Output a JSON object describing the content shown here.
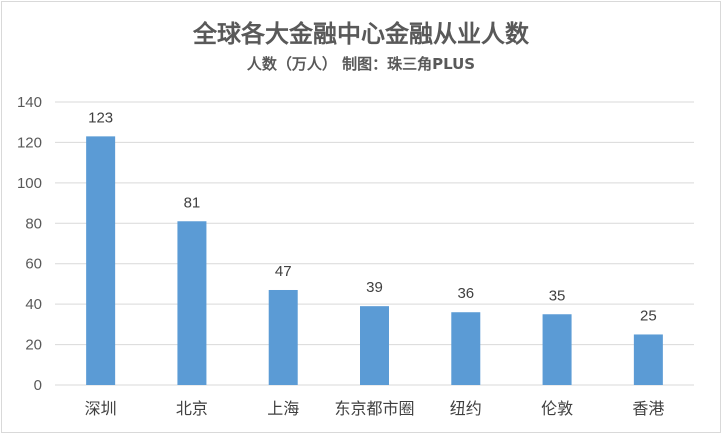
{
  "chart_data": {
    "type": "bar",
    "title": "全球各大金融中心金融从业人数",
    "subtitle": "人数（万人） 制图：珠三角PLUS",
    "categories": [
      "深圳",
      "北京",
      "上海",
      "东京都市圈",
      "纽约",
      "伦敦",
      "香港"
    ],
    "values": [
      123,
      81,
      47,
      39,
      36,
      35,
      25
    ],
    "data_labels": [
      "123",
      "81",
      "47",
      "39",
      "36",
      "35",
      "25"
    ],
    "ylim": [
      0,
      140
    ],
    "yticks": [
      "0",
      "20",
      "40",
      "60",
      "80",
      "100",
      "120",
      "140"
    ],
    "grid": true,
    "legend": "none",
    "bar_color": "#5b9bd5",
    "grid_color": "#d9d9d9"
  }
}
